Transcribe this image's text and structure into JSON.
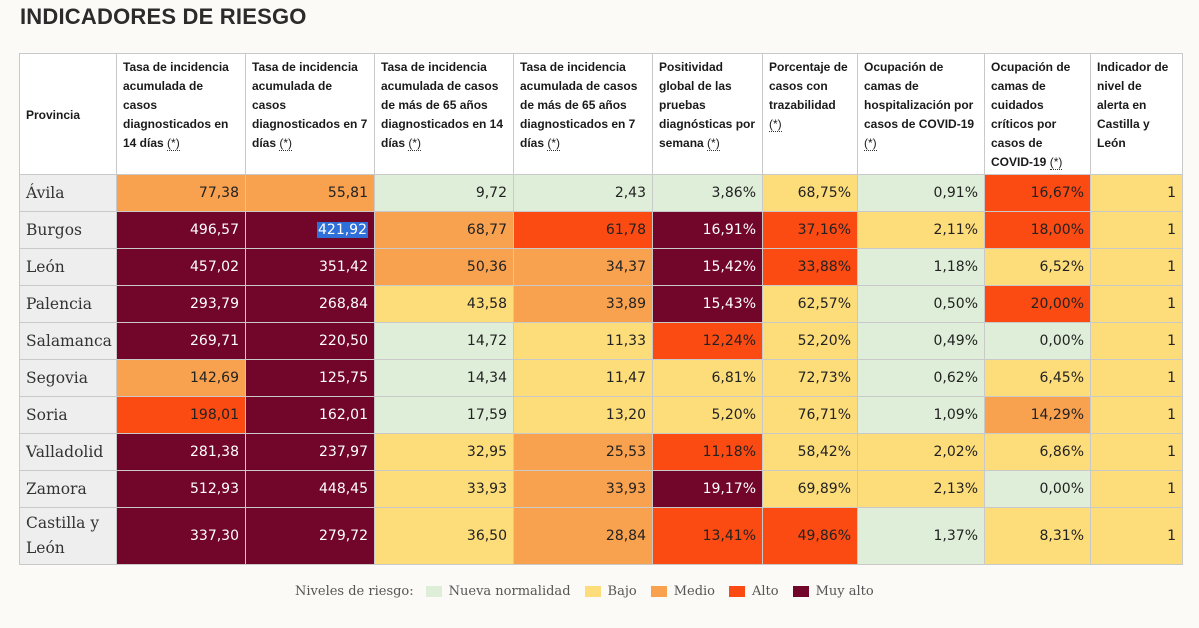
{
  "title": "INDICADORES DE RIESGO",
  "columns": [
    "Provincia",
    "Tasa de incidencia acumulada de casos diagnosticados en 14 días",
    "Tasa de incidencia acumulada de casos diagnosticados en 7 días",
    "Tasa de incidencia acumulada de casos de más de 65 años diagnosticados en 14 días",
    "Tasa de incidencia acumulada de casos de más de 65 años diagnosticados en 7 días",
    "Positividad global de las pruebas diagnósticas por semana",
    "Porcentaje de casos con trazabilidad",
    "Ocupación de camas de hospitalización por casos de COVID-19",
    "Ocupación de camas de cuidados críticos por casos de COVID-19",
    "Indicador de nivel de alerta en Castilla y León"
  ],
  "asterisk": "(*)",
  "rows": [
    {
      "province": "Ávila",
      "values": [
        "77,38",
        "55,81",
        "9,72",
        "2,43",
        "3,86%",
        "68,75%",
        "0,91%",
        "16,67%",
        "1"
      ],
      "levels": [
        2,
        2,
        0,
        0,
        0,
        1,
        0,
        3,
        1
      ]
    },
    {
      "province": "Burgos",
      "values": [
        "496,57",
        "421,92",
        "68,77",
        "61,78",
        "16,91%",
        "37,16%",
        "2,11%",
        "18,00%",
        "1"
      ],
      "levels": [
        4,
        4,
        2,
        3,
        4,
        3,
        1,
        3,
        1
      ]
    },
    {
      "province": "León",
      "values": [
        "457,02",
        "351,42",
        "50,36",
        "34,37",
        "15,42%",
        "33,88%",
        "1,18%",
        "6,52%",
        "1"
      ],
      "levels": [
        4,
        4,
        2,
        2,
        4,
        3,
        0,
        1,
        1
      ]
    },
    {
      "province": "Palencia",
      "values": [
        "293,79",
        "268,84",
        "43,58",
        "33,89",
        "15,43%",
        "62,57%",
        "0,50%",
        "20,00%",
        "1"
      ],
      "levels": [
        4,
        4,
        1,
        2,
        4,
        1,
        0,
        3,
        1
      ]
    },
    {
      "province": "Salamanca",
      "values": [
        "269,71",
        "220,50",
        "14,72",
        "11,33",
        "12,24%",
        "52,20%",
        "0,49%",
        "0,00%",
        "1"
      ],
      "levels": [
        4,
        4,
        0,
        1,
        3,
        1,
        0,
        0,
        1
      ]
    },
    {
      "province": "Segovia",
      "values": [
        "142,69",
        "125,75",
        "14,34",
        "11,47",
        "6,81%",
        "72,73%",
        "0,62%",
        "6,45%",
        "1"
      ],
      "levels": [
        2,
        4,
        0,
        1,
        1,
        1,
        0,
        1,
        1
      ]
    },
    {
      "province": "Soria",
      "values": [
        "198,01",
        "162,01",
        "17,59",
        "13,20",
        "5,20%",
        "76,71%",
        "1,09%",
        "14,29%",
        "1"
      ],
      "levels": [
        3,
        4,
        0,
        1,
        1,
        1,
        0,
        2,
        1
      ]
    },
    {
      "province": "Valladolid",
      "values": [
        "281,38",
        "237,97",
        "32,95",
        "25,53",
        "11,18%",
        "58,42%",
        "2,02%",
        "6,86%",
        "1"
      ],
      "levels": [
        4,
        4,
        1,
        2,
        3,
        1,
        1,
        1,
        1
      ]
    },
    {
      "province": "Zamora",
      "values": [
        "512,93",
        "448,45",
        "33,93",
        "33,93",
        "19,17%",
        "69,89%",
        "2,13%",
        "0,00%",
        "1"
      ],
      "levels": [
        4,
        4,
        1,
        2,
        4,
        1,
        1,
        0,
        1
      ]
    },
    {
      "province": "Castilla y León",
      "values": [
        "337,30",
        "279,72",
        "36,50",
        "28,84",
        "13,41%",
        "49,86%",
        "1,37%",
        "8,31%",
        "1"
      ],
      "levels": [
        4,
        4,
        1,
        2,
        3,
        3,
        0,
        1,
        1
      ]
    }
  ],
  "legend": {
    "label": "Niveles de riesgo:",
    "items": [
      {
        "name": "Nueva normalidad",
        "color": "#dfeed8"
      },
      {
        "name": "Bajo",
        "color": "#fddd7a"
      },
      {
        "name": "Medio",
        "color": "#f8a14f"
      },
      {
        "name": "Alto",
        "color": "#fb4a12"
      },
      {
        "name": "Muy alto",
        "color": "#71062a"
      }
    ]
  },
  "selection": {
    "row": 1,
    "col": 1
  }
}
